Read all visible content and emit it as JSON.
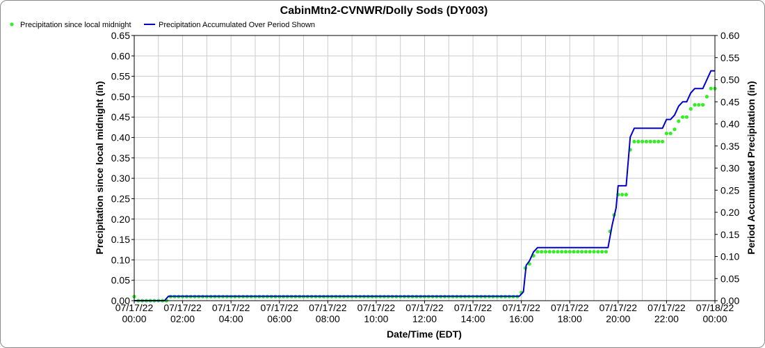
{
  "chart_data": {
    "type": "line",
    "title": "CabinMtn2-CVNWR/Dolly Sods (DY003)",
    "xlabel": "Date/Time (EDT)",
    "ylabel_left": "Precipitation since local midnight (in)",
    "ylabel_right": "Period Accumulated Precipitation (in)",
    "x_ticks": [
      {
        "date": "07/17/22",
        "time": "00:00"
      },
      {
        "date": "07/17/22",
        "time": "02:00"
      },
      {
        "date": "07/17/22",
        "time": "04:00"
      },
      {
        "date": "07/17/22",
        "time": "06:00"
      },
      {
        "date": "07/17/22",
        "time": "08:00"
      },
      {
        "date": "07/17/22",
        "time": "10:00"
      },
      {
        "date": "07/17/22",
        "time": "12:00"
      },
      {
        "date": "07/17/22",
        "time": "14:00"
      },
      {
        "date": "07/17/22",
        "time": "16:00"
      },
      {
        "date": "07/17/22",
        "time": "18:00"
      },
      {
        "date": "07/17/22",
        "time": "20:00"
      },
      {
        "date": "07/17/22",
        "time": "22:00"
      },
      {
        "date": "07/18/22",
        "time": "00:00"
      }
    ],
    "xlim": [
      "07/17/22 00:00",
      "07/18/22 00:00"
    ],
    "ylim_left": [
      0,
      0.65
    ],
    "ylim_right": [
      0,
      0.6
    ],
    "y_ticks_left": [
      "0.00",
      "0.05",
      "0.10",
      "0.15",
      "0.20",
      "0.25",
      "0.30",
      "0.35",
      "0.40",
      "0.45",
      "0.50",
      "0.55",
      "0.60",
      "0.65"
    ],
    "y_ticks_right": [
      "0.00",
      "0.05",
      "0.10",
      "0.15",
      "0.20",
      "0.25",
      "0.30",
      "0.35",
      "0.40",
      "0.45",
      "0.50",
      "0.55",
      "0.60"
    ],
    "grid": true,
    "legend_position": "top-left",
    "series": [
      {
        "name": "Precipitation since local midnight",
        "kind": "scatter",
        "axis": "left",
        "color": "#33ee22",
        "points": [
          [
            "07/17/22 00:00",
            0.01
          ],
          [
            "07/17/22 00:10",
            0.0
          ],
          [
            "07/17/22 00:20",
            0.0
          ],
          [
            "07/17/22 00:30",
            0.0
          ],
          [
            "07/17/22 00:40",
            0.0
          ],
          [
            "07/17/22 00:50",
            0.0
          ],
          [
            "07/17/22 01:00",
            0.0
          ],
          [
            "07/17/22 01:10",
            0.0
          ],
          [
            "07/17/22 01:20",
            0.0
          ],
          [
            "07/17/22 01:30",
            0.01
          ],
          [
            "07/17/22 01:40",
            0.01
          ],
          [
            "07/17/22 01:50",
            0.01
          ],
          [
            "07/17/22 02:00",
            0.01
          ],
          [
            "07/17/22 02:10",
            0.01
          ],
          [
            "07/17/22 02:20",
            0.01
          ],
          [
            "07/17/22 02:30",
            0.01
          ],
          [
            "07/17/22 02:40",
            0.01
          ],
          [
            "07/17/22 02:50",
            0.01
          ],
          [
            "07/17/22 03:00",
            0.01
          ],
          [
            "07/17/22 03:10",
            0.01
          ],
          [
            "07/17/22 03:20",
            0.01
          ],
          [
            "07/17/22 03:30",
            0.01
          ],
          [
            "07/17/22 03:40",
            0.01
          ],
          [
            "07/17/22 03:50",
            0.01
          ],
          [
            "07/17/22 04:00",
            0.01
          ],
          [
            "07/17/22 04:10",
            0.01
          ],
          [
            "07/17/22 04:20",
            0.01
          ],
          [
            "07/17/22 04:30",
            0.01
          ],
          [
            "07/17/22 04:40",
            0.01
          ],
          [
            "07/17/22 04:50",
            0.01
          ],
          [
            "07/17/22 05:00",
            0.01
          ],
          [
            "07/17/22 05:10",
            0.01
          ],
          [
            "07/17/22 05:20",
            0.01
          ],
          [
            "07/17/22 05:30",
            0.01
          ],
          [
            "07/17/22 05:40",
            0.01
          ],
          [
            "07/17/22 05:50",
            0.01
          ],
          [
            "07/17/22 06:00",
            0.01
          ],
          [
            "07/17/22 06:10",
            0.01
          ],
          [
            "07/17/22 06:20",
            0.01
          ],
          [
            "07/17/22 06:30",
            0.01
          ],
          [
            "07/17/22 06:40",
            0.01
          ],
          [
            "07/17/22 06:50",
            0.01
          ],
          [
            "07/17/22 07:00",
            0.01
          ],
          [
            "07/17/22 07:10",
            0.01
          ],
          [
            "07/17/22 07:20",
            0.01
          ],
          [
            "07/17/22 07:30",
            0.01
          ],
          [
            "07/17/22 07:40",
            0.01
          ],
          [
            "07/17/22 07:50",
            0.01
          ],
          [
            "07/17/22 08:00",
            0.01
          ],
          [
            "07/17/22 08:10",
            0.01
          ],
          [
            "07/17/22 08:20",
            0.01
          ],
          [
            "07/17/22 08:30",
            0.01
          ],
          [
            "07/17/22 08:40",
            0.01
          ],
          [
            "07/17/22 08:50",
            0.01
          ],
          [
            "07/17/22 09:00",
            0.01
          ],
          [
            "07/17/22 09:10",
            0.01
          ],
          [
            "07/17/22 09:20",
            0.01
          ],
          [
            "07/17/22 09:30",
            0.01
          ],
          [
            "07/17/22 09:40",
            0.01
          ],
          [
            "07/17/22 09:50",
            0.01
          ],
          [
            "07/17/22 10:00",
            0.01
          ],
          [
            "07/17/22 10:10",
            0.01
          ],
          [
            "07/17/22 10:20",
            0.01
          ],
          [
            "07/17/22 10:30",
            0.01
          ],
          [
            "07/17/22 10:40",
            0.01
          ],
          [
            "07/17/22 10:50",
            0.01
          ],
          [
            "07/17/22 11:00",
            0.01
          ],
          [
            "07/17/22 11:10",
            0.01
          ],
          [
            "07/17/22 11:20",
            0.01
          ],
          [
            "07/17/22 11:30",
            0.01
          ],
          [
            "07/17/22 11:40",
            0.01
          ],
          [
            "07/17/22 11:50",
            0.01
          ],
          [
            "07/17/22 12:00",
            0.01
          ],
          [
            "07/17/22 12:10",
            0.01
          ],
          [
            "07/17/22 12:20",
            0.01
          ],
          [
            "07/17/22 12:30",
            0.01
          ],
          [
            "07/17/22 12:40",
            0.01
          ],
          [
            "07/17/22 12:50",
            0.01
          ],
          [
            "07/17/22 13:00",
            0.01
          ],
          [
            "07/17/22 13:10",
            0.01
          ],
          [
            "07/17/22 13:20",
            0.01
          ],
          [
            "07/17/22 13:30",
            0.01
          ],
          [
            "07/17/22 13:40",
            0.01
          ],
          [
            "07/17/22 13:50",
            0.01
          ],
          [
            "07/17/22 14:00",
            0.01
          ],
          [
            "07/17/22 14:10",
            0.01
          ],
          [
            "07/17/22 14:20",
            0.01
          ],
          [
            "07/17/22 14:30",
            0.01
          ],
          [
            "07/17/22 14:40",
            0.01
          ],
          [
            "07/17/22 14:50",
            0.01
          ],
          [
            "07/17/22 15:00",
            0.01
          ],
          [
            "07/17/22 15:10",
            0.01
          ],
          [
            "07/17/22 15:20",
            0.01
          ],
          [
            "07/17/22 15:30",
            0.01
          ],
          [
            "07/17/22 15:40",
            0.01
          ],
          [
            "07/17/22 15:50",
            0.01
          ],
          [
            "07/17/22 16:00",
            0.02
          ],
          [
            "07/17/22 16:10",
            0.08
          ],
          [
            "07/17/22 16:20",
            0.09
          ],
          [
            "07/17/22 16:30",
            0.11
          ],
          [
            "07/17/22 16:40",
            0.12
          ],
          [
            "07/17/22 16:50",
            0.12
          ],
          [
            "07/17/22 17:00",
            0.12
          ],
          [
            "07/17/22 17:10",
            0.12
          ],
          [
            "07/17/22 17:20",
            0.12
          ],
          [
            "07/17/22 17:30",
            0.12
          ],
          [
            "07/17/22 17:40",
            0.12
          ],
          [
            "07/17/22 17:50",
            0.12
          ],
          [
            "07/17/22 18:00",
            0.12
          ],
          [
            "07/17/22 18:10",
            0.12
          ],
          [
            "07/17/22 18:20",
            0.12
          ],
          [
            "07/17/22 18:30",
            0.12
          ],
          [
            "07/17/22 18:40",
            0.12
          ],
          [
            "07/17/22 18:50",
            0.12
          ],
          [
            "07/17/22 19:00",
            0.12
          ],
          [
            "07/17/22 19:10",
            0.12
          ],
          [
            "07/17/22 19:20",
            0.12
          ],
          [
            "07/17/22 19:30",
            0.12
          ],
          [
            "07/17/22 19:40",
            0.17
          ],
          [
            "07/17/22 19:50",
            0.21
          ],
          [
            "07/17/22 20:00",
            0.26
          ],
          [
            "07/17/22 20:10",
            0.26
          ],
          [
            "07/17/22 20:20",
            0.26
          ],
          [
            "07/17/22 20:30",
            0.37
          ],
          [
            "07/17/22 20:40",
            0.39
          ],
          [
            "07/17/22 20:50",
            0.39
          ],
          [
            "07/17/22 21:00",
            0.39
          ],
          [
            "07/17/22 21:10",
            0.39
          ],
          [
            "07/17/22 21:20",
            0.39
          ],
          [
            "07/17/22 21:30",
            0.39
          ],
          [
            "07/17/22 21:40",
            0.39
          ],
          [
            "07/17/22 21:50",
            0.39
          ],
          [
            "07/17/22 22:00",
            0.41
          ],
          [
            "07/17/22 22:10",
            0.41
          ],
          [
            "07/17/22 22:20",
            0.42
          ],
          [
            "07/17/22 22:30",
            0.44
          ],
          [
            "07/17/22 22:40",
            0.45
          ],
          [
            "07/17/22 22:50",
            0.45
          ],
          [
            "07/17/22 23:00",
            0.47
          ],
          [
            "07/17/22 23:10",
            0.48
          ],
          [
            "07/17/22 23:20",
            0.48
          ],
          [
            "07/17/22 23:30",
            0.48
          ],
          [
            "07/17/22 23:40",
            0.5
          ],
          [
            "07/17/22 23:50",
            0.52
          ],
          [
            "07/18/22 00:00",
            0.52
          ]
        ]
      },
      {
        "name": "Precipitation Accumulated Over Period Shown",
        "kind": "line",
        "axis": "right",
        "color": "#0000cc",
        "points": [
          [
            "07/17/22 00:00",
            0.0
          ],
          [
            "07/17/22 01:15",
            0.0
          ],
          [
            "07/17/22 01:25",
            0.01
          ],
          [
            "07/17/22 15:55",
            0.01
          ],
          [
            "07/17/22 16:05",
            0.02
          ],
          [
            "07/17/22 16:12",
            0.08
          ],
          [
            "07/17/22 16:20",
            0.09
          ],
          [
            "07/17/22 16:30",
            0.11
          ],
          [
            "07/17/22 16:40",
            0.12
          ],
          [
            "07/17/22 19:35",
            0.12
          ],
          [
            "07/17/22 19:45",
            0.17
          ],
          [
            "07/17/22 19:55",
            0.21
          ],
          [
            "07/17/22 20:00",
            0.26
          ],
          [
            "07/17/22 20:20",
            0.26
          ],
          [
            "07/17/22 20:30",
            0.37
          ],
          [
            "07/17/22 20:40",
            0.39
          ],
          [
            "07/17/22 21:50",
            0.39
          ],
          [
            "07/17/22 22:00",
            0.41
          ],
          [
            "07/17/22 22:10",
            0.41
          ],
          [
            "07/17/22 22:20",
            0.42
          ],
          [
            "07/17/22 22:30",
            0.44
          ],
          [
            "07/17/22 22:40",
            0.45
          ],
          [
            "07/17/22 22:50",
            0.45
          ],
          [
            "07/17/22 23:00",
            0.47
          ],
          [
            "07/17/22 23:10",
            0.48
          ],
          [
            "07/17/22 23:30",
            0.48
          ],
          [
            "07/17/22 23:40",
            0.5
          ],
          [
            "07/17/22 23:50",
            0.52
          ],
          [
            "07/18/22 00:00",
            0.52
          ]
        ]
      }
    ]
  }
}
